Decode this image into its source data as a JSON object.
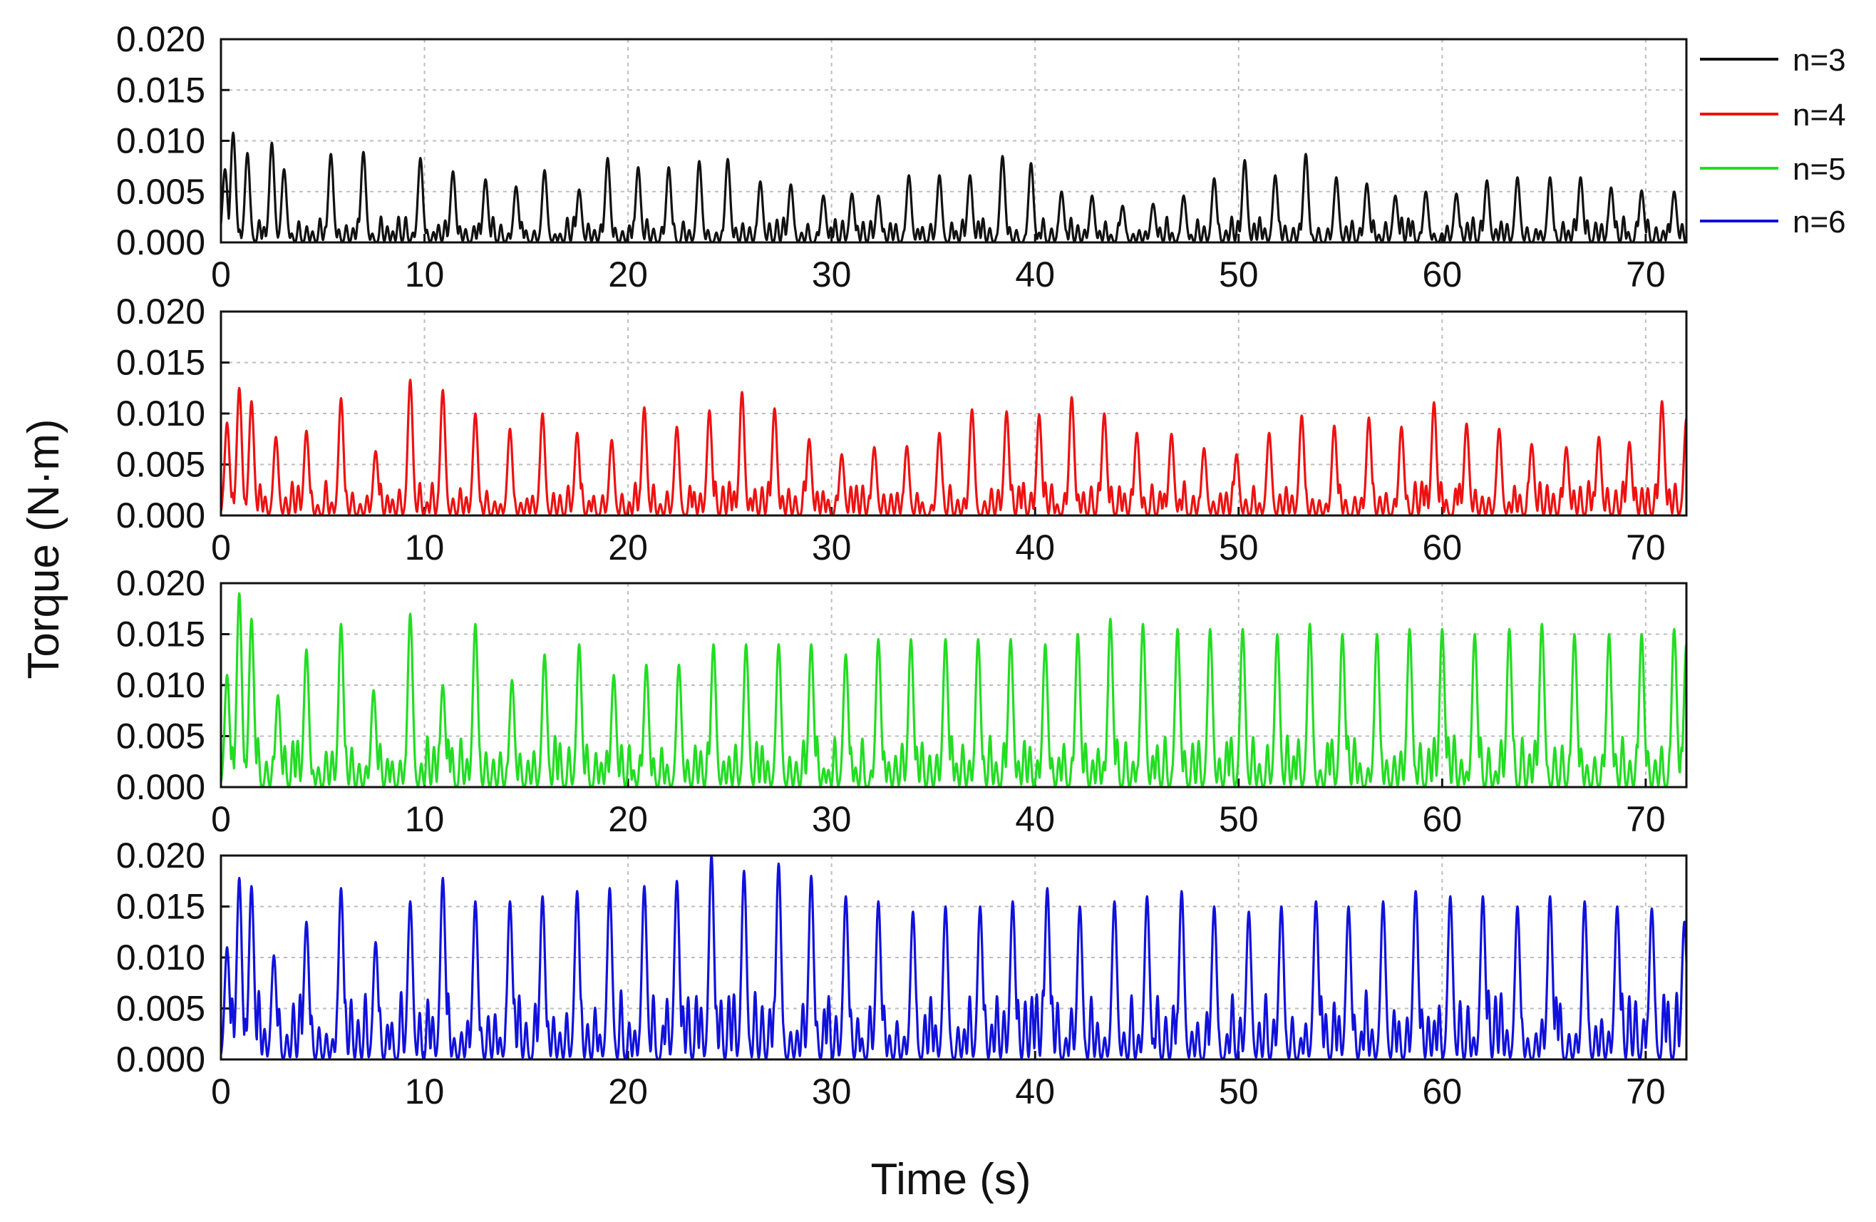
{
  "chart_data": {
    "type": "line",
    "layout": "stacked-panels",
    "xlabel": "Time (s)",
    "ylabel": "Torque (N·m)",
    "xlim": [
      0,
      72
    ],
    "ylim": [
      0,
      0.02
    ],
    "x_ticks": [
      "0",
      "10",
      "20",
      "30",
      "40",
      "50",
      "60",
      "70"
    ],
    "y_ticks": [
      "0.000",
      "0.005",
      "0.010",
      "0.015",
      "0.020"
    ],
    "grid": true,
    "legend_position": "top-right",
    "series": [
      {
        "name": "n=3",
        "color": "#111111",
        "period_s": 1.5,
        "peak_torque_typical": 0.0075,
        "peak_torque_max": 0.0108,
        "baseline_torque_typical": 0.0015,
        "peaks": [
          [
            0.2,
            0.0072
          ],
          [
            0.6,
            0.0108
          ],
          [
            1.3,
            0.0088
          ],
          [
            2.5,
            0.0098
          ],
          [
            3.1,
            0.0072
          ],
          [
            5.4,
            0.0087
          ],
          [
            7.0,
            0.0089
          ],
          [
            9.8,
            0.0083
          ],
          [
            11.4,
            0.007
          ],
          [
            13.0,
            0.0062
          ],
          [
            14.5,
            0.0055
          ],
          [
            15.9,
            0.0071
          ],
          [
            17.6,
            0.0052
          ],
          [
            19.0,
            0.0083
          ],
          [
            20.5,
            0.0074
          ],
          [
            22.0,
            0.0074
          ],
          [
            23.5,
            0.008
          ],
          [
            24.9,
            0.0082
          ],
          [
            26.5,
            0.006
          ],
          [
            28.0,
            0.0057
          ],
          [
            29.6,
            0.0046
          ],
          [
            31.0,
            0.0048
          ],
          [
            32.3,
            0.0046
          ],
          [
            33.8,
            0.0066
          ],
          [
            35.3,
            0.0066
          ],
          [
            36.8,
            0.0066
          ],
          [
            38.4,
            0.0085
          ],
          [
            39.8,
            0.0078
          ],
          [
            41.3,
            0.005
          ],
          [
            42.8,
            0.0046
          ],
          [
            44.3,
            0.0036
          ],
          [
            45.8,
            0.0038
          ],
          [
            47.3,
            0.0046
          ],
          [
            48.8,
            0.0063
          ],
          [
            50.3,
            0.0081
          ],
          [
            51.8,
            0.0066
          ],
          [
            53.3,
            0.0087
          ],
          [
            54.8,
            0.0064
          ],
          [
            56.3,
            0.0058
          ],
          [
            57.7,
            0.0046
          ],
          [
            59.2,
            0.005
          ],
          [
            60.7,
            0.0048
          ],
          [
            62.2,
            0.0061
          ],
          [
            63.7,
            0.0064
          ],
          [
            65.3,
            0.0064
          ],
          [
            66.8,
            0.0064
          ],
          [
            68.3,
            0.0054
          ],
          [
            69.8,
            0.0051
          ],
          [
            71.4,
            0.005
          ]
        ]
      },
      {
        "name": "n=4",
        "color": "#ee1111",
        "period_s": 1.6,
        "peak_torque_typical": 0.009,
        "peak_torque_max": 0.0134,
        "baseline_torque_typical": 0.002,
        "peaks": [
          [
            0.3,
            0.0091
          ],
          [
            0.9,
            0.0125
          ],
          [
            1.5,
            0.0112
          ],
          [
            2.7,
            0.0077
          ],
          [
            4.2,
            0.0083
          ],
          [
            5.9,
            0.0115
          ],
          [
            7.6,
            0.0063
          ],
          [
            9.3,
            0.0133
          ],
          [
            10.9,
            0.0123
          ],
          [
            12.5,
            0.01
          ],
          [
            14.2,
            0.0085
          ],
          [
            15.8,
            0.01
          ],
          [
            17.5,
            0.0081
          ],
          [
            19.2,
            0.0074
          ],
          [
            20.8,
            0.0106
          ],
          [
            22.4,
            0.0087
          ],
          [
            24.0,
            0.0103
          ],
          [
            25.6,
            0.0121
          ],
          [
            27.2,
            0.0105
          ],
          [
            28.9,
            0.0075
          ],
          [
            30.5,
            0.006
          ],
          [
            32.1,
            0.0067
          ],
          [
            33.7,
            0.0068
          ],
          [
            35.3,
            0.0081
          ],
          [
            36.9,
            0.0104
          ],
          [
            38.6,
            0.0102
          ],
          [
            40.2,
            0.0099
          ],
          [
            41.8,
            0.0116
          ],
          [
            43.4,
            0.01
          ],
          [
            45.0,
            0.0081
          ],
          [
            46.7,
            0.008
          ],
          [
            48.3,
            0.0066
          ],
          [
            49.9,
            0.006
          ],
          [
            51.5,
            0.0081
          ],
          [
            53.1,
            0.0098
          ],
          [
            54.7,
            0.0088
          ],
          [
            56.4,
            0.0096
          ],
          [
            58.0,
            0.0087
          ],
          [
            59.6,
            0.0111
          ],
          [
            61.2,
            0.009
          ],
          [
            62.8,
            0.0085
          ],
          [
            64.4,
            0.007
          ],
          [
            66.1,
            0.0067
          ],
          [
            67.7,
            0.0077
          ],
          [
            69.2,
            0.0072
          ],
          [
            70.8,
            0.0112
          ],
          [
            72.0,
            0.0095
          ]
        ]
      },
      {
        "name": "n=5",
        "color": "#22dd22",
        "period_s": 1.65,
        "peak_torque_typical": 0.0145,
        "peak_torque_max": 0.019,
        "baseline_torque_typical": 0.003,
        "peaks": [
          [
            0.3,
            0.011
          ],
          [
            0.9,
            0.019
          ],
          [
            1.5,
            0.0165
          ],
          [
            2.8,
            0.009
          ],
          [
            4.2,
            0.0135
          ],
          [
            5.9,
            0.016
          ],
          [
            7.5,
            0.0095
          ],
          [
            9.3,
            0.017
          ],
          [
            10.9,
            0.01
          ],
          [
            12.5,
            0.016
          ],
          [
            14.3,
            0.0105
          ],
          [
            15.9,
            0.013
          ],
          [
            17.6,
            0.014
          ],
          [
            19.3,
            0.011
          ],
          [
            20.9,
            0.012
          ],
          [
            22.5,
            0.012
          ],
          [
            24.2,
            0.014
          ],
          [
            25.8,
            0.014
          ],
          [
            27.4,
            0.014
          ],
          [
            29.0,
            0.014
          ],
          [
            30.7,
            0.013
          ],
          [
            32.3,
            0.0145
          ],
          [
            33.9,
            0.0145
          ],
          [
            35.6,
            0.0145
          ],
          [
            37.2,
            0.0145
          ],
          [
            38.8,
            0.0145
          ],
          [
            40.5,
            0.014
          ],
          [
            42.1,
            0.015
          ],
          [
            43.7,
            0.0165
          ],
          [
            45.3,
            0.016
          ],
          [
            47.0,
            0.0155
          ],
          [
            48.6,
            0.0155
          ],
          [
            50.2,
            0.0155
          ],
          [
            51.9,
            0.015
          ],
          [
            53.5,
            0.016
          ],
          [
            55.1,
            0.015
          ],
          [
            56.8,
            0.015
          ],
          [
            58.4,
            0.0155
          ],
          [
            60.0,
            0.0155
          ],
          [
            61.6,
            0.015
          ],
          [
            63.3,
            0.0155
          ],
          [
            64.9,
            0.016
          ],
          [
            66.5,
            0.015
          ],
          [
            68.2,
            0.015
          ],
          [
            69.8,
            0.015
          ],
          [
            71.4,
            0.0155
          ],
          [
            72.0,
            0.014
          ]
        ]
      },
      {
        "name": "n=6",
        "color": "#1111dd",
        "period_s": 1.7,
        "peak_torque_typical": 0.015,
        "peak_torque_max": 0.02,
        "baseline_torque_typical": 0.004,
        "peaks": [
          [
            0.3,
            0.011
          ],
          [
            0.9,
            0.0178
          ],
          [
            1.5,
            0.017
          ],
          [
            2.6,
            0.0102
          ],
          [
            4.2,
            0.0135
          ],
          [
            5.9,
            0.0168
          ],
          [
            7.6,
            0.0115
          ],
          [
            9.3,
            0.0155
          ],
          [
            10.9,
            0.0178
          ],
          [
            12.5,
            0.0155
          ],
          [
            14.2,
            0.0155
          ],
          [
            15.8,
            0.016
          ],
          [
            17.5,
            0.0165
          ],
          [
            19.1,
            0.0168
          ],
          [
            20.8,
            0.017
          ],
          [
            22.4,
            0.0175
          ],
          [
            24.1,
            0.02
          ],
          [
            25.7,
            0.0185
          ],
          [
            27.4,
            0.0192
          ],
          [
            29.0,
            0.018
          ],
          [
            30.7,
            0.016
          ],
          [
            32.3,
            0.0155
          ],
          [
            34.0,
            0.0145
          ],
          [
            35.6,
            0.015
          ],
          [
            37.3,
            0.015
          ],
          [
            38.9,
            0.0155
          ],
          [
            40.6,
            0.0168
          ],
          [
            42.2,
            0.015
          ],
          [
            43.9,
            0.0155
          ],
          [
            45.5,
            0.016
          ],
          [
            47.2,
            0.0165
          ],
          [
            48.8,
            0.015
          ],
          [
            50.5,
            0.0145
          ],
          [
            52.1,
            0.015
          ],
          [
            53.8,
            0.0155
          ],
          [
            55.4,
            0.015
          ],
          [
            57.1,
            0.0155
          ],
          [
            58.7,
            0.0165
          ],
          [
            60.4,
            0.016
          ],
          [
            62.0,
            0.016
          ],
          [
            63.7,
            0.015
          ],
          [
            65.3,
            0.016
          ],
          [
            67.0,
            0.0155
          ],
          [
            68.6,
            0.015
          ],
          [
            70.3,
            0.0148
          ],
          [
            71.9,
            0.0135
          ]
        ]
      }
    ]
  }
}
